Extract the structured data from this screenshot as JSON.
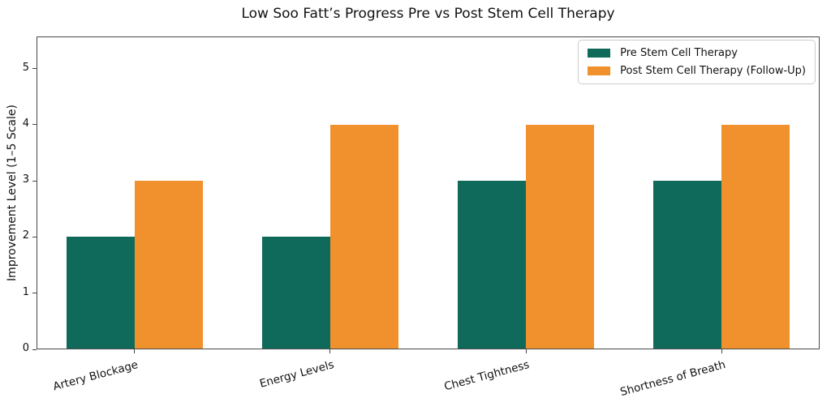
{
  "chart_data": {
    "type": "bar",
    "title": "Low Soo Fatt’s Progress Pre vs Post Stem Cell Therapy",
    "xlabel": "",
    "ylabel": "Improvement Level (1–5 Scale)",
    "categories": [
      "Artery Blockage",
      "Energy Levels",
      "Chest Tightness",
      "Shortness of Breath"
    ],
    "series": [
      {
        "name": "Pre Stem Cell Therapy",
        "color": "#106A5C",
        "values": [
          2,
          2,
          3,
          3
        ]
      },
      {
        "name": "Post Stem Cell Therapy (Follow-Up)",
        "color": "#F0912D",
        "values": [
          3,
          4,
          4,
          4
        ]
      }
    ],
    "yticks": [
      0,
      1,
      2,
      3,
      4,
      5
    ],
    "ylim": [
      0,
      5.57
    ],
    "grid": false,
    "legend_position": "upper right",
    "x_tick_rotation_deg": 15
  },
  "colors": {
    "spine": "#4a4a4a",
    "text": "#111111",
    "legend_border": "#cccccc",
    "background": "#ffffff"
  }
}
